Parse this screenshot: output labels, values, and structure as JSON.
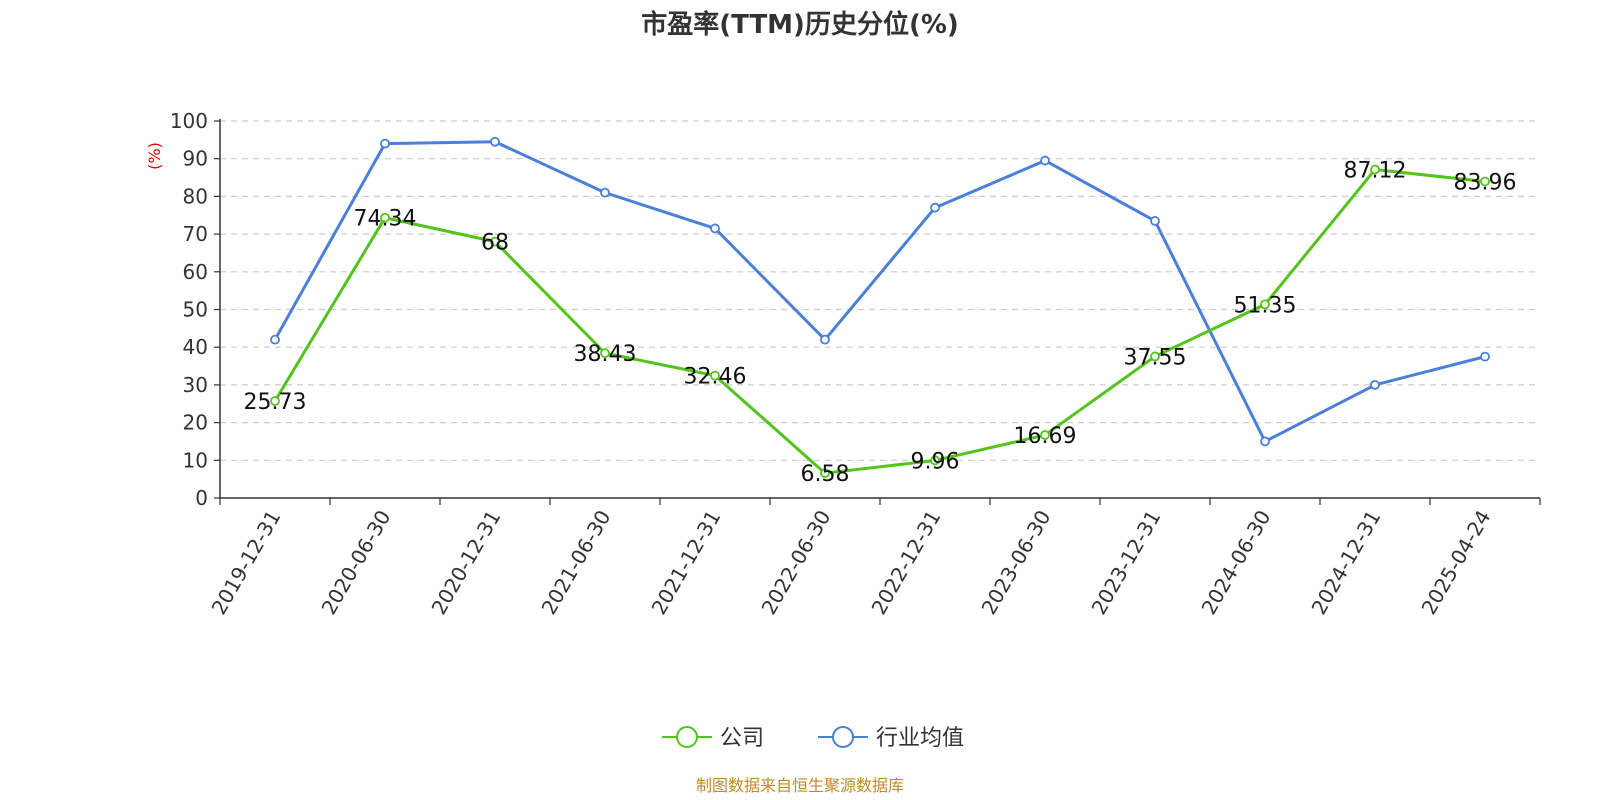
{
  "chart_data": {
    "type": "line",
    "title": "市盈率(TTM)历史分位(%)",
    "ylabel": "(%)",
    "ylim": [
      0,
      100
    ],
    "yticks": [
      0,
      10,
      20,
      30,
      40,
      50,
      60,
      70,
      80,
      90,
      100
    ],
    "categories": [
      "2019-12-31",
      "2020-06-30",
      "2020-12-31",
      "2021-06-30",
      "2021-12-31",
      "2022-06-30",
      "2022-12-31",
      "2023-06-30",
      "2023-12-31",
      "2024-06-30",
      "2024-12-31",
      "2025-04-24"
    ],
    "grid": true,
    "legend_position": "bottom",
    "series": [
      {
        "name": "公司",
        "color": "#52c41a",
        "values": [
          25.73,
          74.34,
          68,
          38.43,
          32.46,
          6.58,
          9.96,
          16.69,
          37.55,
          51.35,
          87.12,
          83.96
        ],
        "labels": [
          "25.73",
          "74.34",
          "68",
          "38.43",
          "32.46",
          "6.58",
          "9.96",
          "16.69",
          "37.55",
          "51.35",
          "87.12",
          "83.96"
        ]
      },
      {
        "name": "行业均值",
        "color": "#4a7fdc",
        "values": [
          42,
          94,
          94.5,
          81,
          71.5,
          42,
          77,
          89.5,
          73.5,
          15,
          30,
          37.5
        ]
      }
    ],
    "source_note": "制图数据来自恒生聚源数据库",
    "source_color": "#c08a2a",
    "ylabel_color": "#e00000"
  }
}
